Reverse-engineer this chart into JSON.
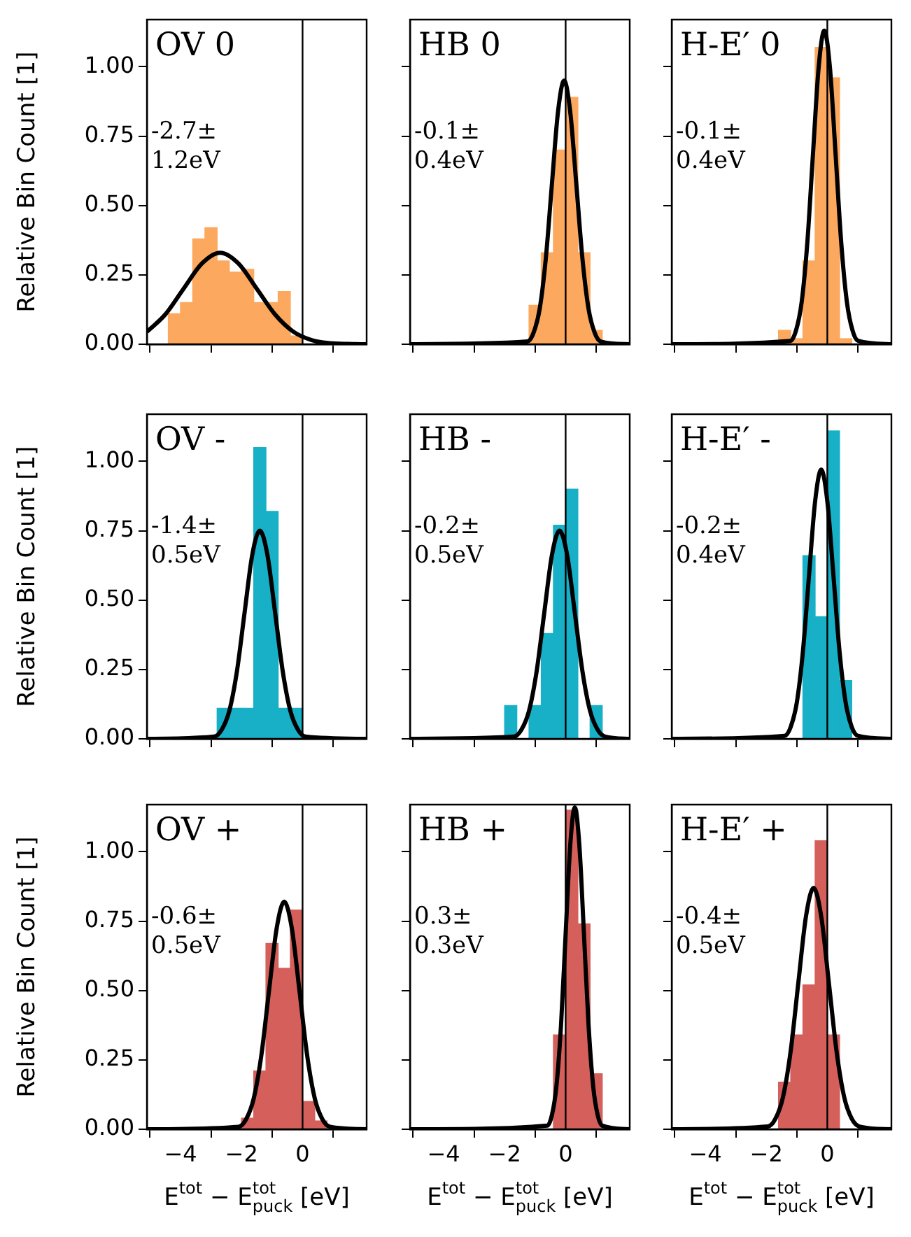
{
  "chart_data": [
    {
      "type": "histogram",
      "title": "OV 0",
      "annotations": [
        "-2.7±\n1.2eV"
      ],
      "ylabel": "Relative Bin Count [1]",
      "tick_labels": "y",
      "xlim": [
        -5.1,
        2.1
      ],
      "ylim": [
        0,
        1.17
      ],
      "xticks": [
        {
          "value": -4,
          "label": null
        },
        {
          "value": -2,
          "label": null
        },
        {
          "value": 0,
          "label": null
        }
      ],
      "yticks": [
        {
          "value": 0,
          "label": "0.00"
        },
        {
          "value": 0.25,
          "label": "0.25"
        },
        {
          "value": 0.5,
          "label": "0.50"
        },
        {
          "value": 0.75,
          "label": "0.75"
        },
        {
          "value": 1,
          "label": "1.00"
        }
      ],
      "ref_lines": [
        {
          "axis": "x",
          "value": 0
        }
      ],
      "bins": [
        -4.4,
        -4.0,
        -3.6,
        -3.2,
        -2.8,
        -2.4,
        -2.0,
        -1.6,
        -1.2,
        -0.8,
        -0.4,
        0.0
      ],
      "series": [
        {
          "type": "histogram",
          "color": "#fca85e",
          "values": [
            0.11,
            0.15,
            0.38,
            0.42,
            0.3,
            0.26,
            0.27,
            0.15,
            0.15,
            0.19,
            0.03
          ]
        },
        {
          "type": "line",
          "color": "#000000",
          "x": [
            -5.1,
            -4.5,
            -3.9,
            -3.3,
            -2.7,
            -2.1,
            -1.5,
            -0.9,
            -0.3,
            0.3,
            0.9,
            1.5,
            2.1
          ],
          "values": [
            0.045,
            0.107,
            0.2,
            0.291,
            0.33,
            0.291,
            0.2,
            0.107,
            0.045,
            0.015,
            0.004,
            0.001,
            0
          ]
        }
      ]
    },
    {
      "type": "histogram",
      "title": "HB 0",
      "annotations": [
        "-0.1±\n0.4eV"
      ],
      "tick_labels": false,
      "xlim": [
        -5.1,
        2.1
      ],
      "ylim": [
        0,
        1.17
      ],
      "xticks": [
        {
          "value": -4,
          "label": null
        },
        {
          "value": -2,
          "label": null
        },
        {
          "value": 0,
          "label": null
        }
      ],
      "yticks": [
        {
          "value": 0,
          "label": null
        },
        {
          "value": 0.25,
          "label": null
        },
        {
          "value": 0.5,
          "label": null
        },
        {
          "value": 0.75,
          "label": null
        },
        {
          "value": 1,
          "label": null
        }
      ],
      "ref_lines": [
        {
          "axis": "x",
          "value": 0
        }
      ],
      "bins": [
        -1.2,
        -0.8,
        -0.4,
        0.0,
        0.4,
        0.8,
        1.2
      ],
      "series": [
        {
          "type": "histogram",
          "color": "#fca85e",
          "values": [
            0.14,
            0.33,
            0.7,
            0.89,
            0.33,
            0.05
          ]
        },
        {
          "type": "line",
          "color": "#000000",
          "x": [
            -5.1,
            -1.25,
            -1.05,
            -0.85,
            -0.65,
            -0.45,
            -0.25,
            -0.05,
            0.15,
            0.35,
            0.55,
            0.75,
            0.95,
            1.15,
            2.1
          ],
          "values": [
            0,
            0.01,
            0.042,
            0.128,
            0.309,
            0.577,
            0.838,
            0.95,
            0.838,
            0.577,
            0.309,
            0.128,
            0.042,
            0.01,
            0
          ]
        }
      ]
    },
    {
      "type": "histogram",
      "title": "H-E′ 0",
      "annotations": [
        "-0.1±\n0.4eV"
      ],
      "tick_labels": false,
      "xlim": [
        -5.1,
        2.1
      ],
      "ylim": [
        0,
        1.17
      ],
      "xticks": [
        {
          "value": -4,
          "label": null
        },
        {
          "value": -2,
          "label": null
        },
        {
          "value": 0,
          "label": null
        }
      ],
      "yticks": [
        {
          "value": 0,
          "label": null
        },
        {
          "value": 0.25,
          "label": null
        },
        {
          "value": 0.5,
          "label": null
        },
        {
          "value": 0.75,
          "label": null
        },
        {
          "value": 1,
          "label": null
        }
      ],
      "ref_lines": [
        {
          "axis": "x",
          "value": 0
        }
      ],
      "bins": [
        -1.6,
        -1.2,
        -0.8,
        -0.4,
        0.0,
        0.4,
        0.8
      ],
      "series": [
        {
          "type": "histogram",
          "color": "#fca85e",
          "values": [
            0.05,
            0.02,
            0.3,
            1.07,
            0.96,
            0.02
          ]
        },
        {
          "type": "line",
          "color": "#000000",
          "x": [
            -5.1,
            -1.21,
            -1.025,
            -0.84,
            -0.655,
            -0.47,
            -0.285,
            -0.1,
            0.085,
            0.27,
            0.455,
            0.64,
            0.825,
            1.01,
            2.1
          ],
          "values": [
            0,
            0.012,
            0.05,
            0.153,
            0.367,
            0.686,
            0.997,
            1.13,
            0.997,
            0.686,
            0.367,
            0.153,
            0.05,
            0.012,
            0
          ]
        }
      ]
    },
    {
      "type": "histogram",
      "title": "OV -",
      "annotations": [
        "-1.4±\n0.5eV"
      ],
      "ylabel": "Relative Bin Count [1]",
      "tick_labels": "y",
      "xlim": [
        -5.1,
        2.1
      ],
      "ylim": [
        0,
        1.17
      ],
      "xticks": [
        {
          "value": -4,
          "label": null
        },
        {
          "value": -2,
          "label": null
        },
        {
          "value": 0,
          "label": null
        }
      ],
      "yticks": [
        {
          "value": 0,
          "label": "0.00"
        },
        {
          "value": 0.25,
          "label": "0.25"
        },
        {
          "value": 0.5,
          "label": "0.50"
        },
        {
          "value": 0.75,
          "label": "0.75"
        },
        {
          "value": 1,
          "label": "1.00"
        }
      ],
      "ref_lines": [
        {
          "axis": "x",
          "value": 0
        }
      ],
      "bins": [
        -2.8,
        -2.4,
        -2.0,
        -1.6,
        -1.2,
        -0.8,
        -0.4,
        0.0
      ],
      "series": [
        {
          "type": "histogram",
          "color": "#17b0c7",
          "values": [
            0.11,
            0.11,
            0.11,
            1.05,
            0.82,
            0.11,
            0.11
          ]
        },
        {
          "type": "line",
          "color": "#000000",
          "x": [
            -5.1,
            -2.9,
            -2.65,
            -2.4,
            -2.15,
            -1.9,
            -1.65,
            -1.4,
            -1.15,
            -0.9,
            -0.65,
            -0.4,
            -0.15,
            0.1,
            2.1
          ],
          "values": [
            0,
            0.008,
            0.033,
            0.101,
            0.244,
            0.455,
            0.662,
            0.75,
            0.662,
            0.455,
            0.244,
            0.101,
            0.033,
            0.008,
            0
          ]
        }
      ]
    },
    {
      "type": "histogram",
      "title": "HB -",
      "annotations": [
        "-0.2±\n0.5eV"
      ],
      "tick_labels": false,
      "xlim": [
        -5.1,
        2.1
      ],
      "ylim": [
        0,
        1.17
      ],
      "xticks": [
        {
          "value": -4,
          "label": null
        },
        {
          "value": -2,
          "label": null
        },
        {
          "value": 0,
          "label": null
        }
      ],
      "yticks": [
        {
          "value": 0,
          "label": null
        },
        {
          "value": 0.25,
          "label": null
        },
        {
          "value": 0.5,
          "label": null
        },
        {
          "value": 0.75,
          "label": null
        },
        {
          "value": 1,
          "label": null
        }
      ],
      "ref_lines": [
        {
          "axis": "x",
          "value": 0
        }
      ],
      "bins": [
        -2.0,
        -1.6,
        -1.2,
        -0.8,
        -0.4,
        0.0,
        0.4,
        0.8,
        1.2
      ],
      "series": [
        {
          "type": "histogram",
          "color": "#17b0c7",
          "values": [
            0.12,
            0,
            0.12,
            0.38,
            0.77,
            0.9,
            0,
            0.12
          ]
        },
        {
          "type": "line",
          "color": "#000000",
          "x": [
            -5.1,
            -1.7,
            -1.45,
            -1.2,
            -0.95,
            -0.7,
            -0.45,
            -0.2,
            0.05,
            0.3,
            0.55,
            0.8,
            1.05,
            1.3,
            2.1
          ],
          "values": [
            0,
            0.008,
            0.033,
            0.101,
            0.244,
            0.455,
            0.662,
            0.75,
            0.662,
            0.455,
            0.244,
            0.101,
            0.033,
            0.008,
            0
          ]
        }
      ]
    },
    {
      "type": "histogram",
      "title": "H-E′ -",
      "annotations": [
        "-0.2±\n0.4eV"
      ],
      "tick_labels": false,
      "xlim": [
        -5.1,
        2.1
      ],
      "ylim": [
        0,
        1.17
      ],
      "xticks": [
        {
          "value": -4,
          "label": null
        },
        {
          "value": -2,
          "label": null
        },
        {
          "value": 0,
          "label": null
        }
      ],
      "yticks": [
        {
          "value": 0,
          "label": null
        },
        {
          "value": 0.25,
          "label": null
        },
        {
          "value": 0.5,
          "label": null
        },
        {
          "value": 0.75,
          "label": null
        },
        {
          "value": 1,
          "label": null
        }
      ],
      "ref_lines": [
        {
          "axis": "x",
          "value": 0
        }
      ],
      "bins": [
        -0.8,
        -0.4,
        0.0,
        0.4,
        0.8
      ],
      "series": [
        {
          "type": "histogram",
          "color": "#17b0c7",
          "values": [
            0.66,
            0.44,
            1.11,
            0.21
          ]
        },
        {
          "type": "line",
          "color": "#000000",
          "x": [
            -5.1,
            -1.4,
            -1.2,
            -1.0,
            -0.8,
            -0.6,
            -0.4,
            -0.2,
            0.0,
            0.2,
            0.4,
            0.6,
            0.8,
            1.0,
            2.1
          ],
          "values": [
            0,
            0.011,
            0.043,
            0.131,
            0.315,
            0.589,
            0.856,
            0.97,
            0.856,
            0.589,
            0.315,
            0.131,
            0.043,
            0.011,
            0
          ]
        }
      ]
    },
    {
      "type": "histogram",
      "title": "OV +",
      "annotations": [
        "-0.6±\n0.5eV"
      ],
      "ylabel": "Relative Bin Count [1]",
      "xlabel": "E$^{tot}$ − E$^{tot}$$_{puck}$ [eV]",
      "xlim": [
        -5.1,
        2.1
      ],
      "ylim": [
        0,
        1.17
      ],
      "xticks": [
        {
          "value": -4,
          "label": "−4"
        },
        {
          "value": -2,
          "label": "−2"
        },
        {
          "value": 0,
          "label": "0"
        }
      ],
      "yticks": [
        {
          "value": 0,
          "label": "0.00"
        },
        {
          "value": 0.25,
          "label": "0.25"
        },
        {
          "value": 0.5,
          "label": "0.50"
        },
        {
          "value": 0.75,
          "label": "0.75"
        },
        {
          "value": 1,
          "label": "1.00"
        }
      ],
      "ref_lines": [
        {
          "axis": "x",
          "value": 0
        }
      ],
      "bins": [
        -2.0,
        -1.6,
        -1.2,
        -0.8,
        -0.4,
        0.0,
        0.4,
        0.8
      ],
      "series": [
        {
          "type": "histogram",
          "color": "#d5605b",
          "values": [
            0.04,
            0.21,
            0.67,
            0.58,
            0.79,
            0.1,
            0.03
          ]
        },
        {
          "type": "line",
          "color": "#000000",
          "x": [
            -5.1,
            -2.1,
            -1.85,
            -1.6,
            -1.35,
            -1.1,
            -0.85,
            -0.6,
            -0.35,
            -0.1,
            0.15,
            0.4,
            0.65,
            0.9,
            2.1
          ],
          "values": [
            0,
            0.009,
            0.036,
            0.111,
            0.267,
            0.498,
            0.723,
            0.82,
            0.723,
            0.498,
            0.267,
            0.111,
            0.036,
            0.009,
            0
          ]
        }
      ]
    },
    {
      "type": "histogram",
      "title": "HB +",
      "annotations": [
        "0.3±\n0.3eV"
      ],
      "xlabel": "E$^{tot}$ − E$^{tot}$$_{puck}$ [eV]",
      "tick_labels": "x",
      "xlim": [
        -5.1,
        2.1
      ],
      "ylim": [
        0,
        1.17
      ],
      "xticks": [
        {
          "value": -4,
          "label": "−4"
        },
        {
          "value": -2,
          "label": "−2"
        },
        {
          "value": 0,
          "label": "0"
        }
      ],
      "yticks": [
        {
          "value": 0,
          "label": null
        },
        {
          "value": 0.25,
          "label": null
        },
        {
          "value": 0.5,
          "label": null
        },
        {
          "value": 0.75,
          "label": null
        },
        {
          "value": 1,
          "label": null
        }
      ],
      "ref_lines": [
        {
          "axis": "x",
          "value": 0
        }
      ],
      "bins": [
        -0.4,
        0.0,
        0.4,
        0.8,
        1.2
      ],
      "series": [
        {
          "type": "histogram",
          "color": "#d5605b",
          "values": [
            0.34,
            1.15,
            0.74,
            0.2
          ]
        },
        {
          "type": "line",
          "color": "#000000",
          "x": [
            -5.1,
            -0.6,
            -0.45,
            -0.3,
            -0.15,
            0.0,
            0.15,
            0.3,
            0.45,
            0.6,
            0.75,
            0.9,
            1.05,
            1.2,
            2.1
          ],
          "values": [
            0,
            0.013,
            0.051,
            0.157,
            0.377,
            0.704,
            1.023,
            1.16,
            1.023,
            0.704,
            0.377,
            0.157,
            0.051,
            0.013,
            0
          ]
        }
      ]
    },
    {
      "type": "histogram",
      "title": "H-E′ +",
      "annotations": [
        "-0.4±\n0.5eV"
      ],
      "xlabel": "E$^{tot}$ − E$^{tot}$$_{puck}$ [eV]",
      "tick_labels": "x",
      "xlim": [
        -5.1,
        2.1
      ],
      "ylim": [
        0,
        1.17
      ],
      "xticks": [
        {
          "value": -4,
          "label": "−4"
        },
        {
          "value": -2,
          "label": "−2"
        },
        {
          "value": 0,
          "label": "0"
        }
      ],
      "yticks": [
        {
          "value": 0,
          "label": null
        },
        {
          "value": 0.25,
          "label": null
        },
        {
          "value": 0.5,
          "label": null
        },
        {
          "value": 0.75,
          "label": null
        },
        {
          "value": 1,
          "label": null
        }
      ],
      "ref_lines": [
        {
          "axis": "x",
          "value": 0
        }
      ],
      "bins": [
        -1.6,
        -1.2,
        -0.8,
        -0.4,
        0.0,
        0.4
      ],
      "series": [
        {
          "type": "histogram",
          "color": "#d5605b",
          "values": [
            0.17,
            0.34,
            0.52,
            1.04,
            0.34
          ]
        },
        {
          "type": "line",
          "color": "#000000",
          "x": [
            -5.1,
            -1.95,
            -1.7,
            -1.45,
            -1.2,
            -0.95,
            -0.7,
            -0.45,
            -0.2,
            0.05,
            0.3,
            0.55,
            0.8,
            1.05,
            2.1
          ],
          "values": [
            0,
            0.01,
            0.038,
            0.117,
            0.283,
            0.528,
            0.767,
            0.87,
            0.767,
            0.528,
            0.283,
            0.117,
            0.038,
            0.01,
            0
          ]
        }
      ]
    }
  ]
}
